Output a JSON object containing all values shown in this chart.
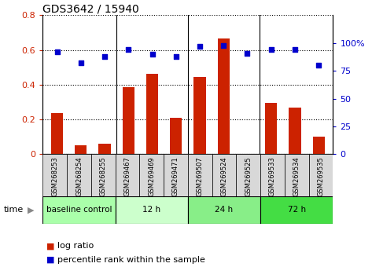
{
  "title": "GDS3642 / 15940",
  "categories": [
    "GSM268253",
    "GSM268254",
    "GSM268255",
    "GSM269467",
    "GSM269469",
    "GSM269471",
    "GSM269507",
    "GSM269524",
    "GSM269525",
    "GSM269533",
    "GSM269534",
    "GSM269535"
  ],
  "log_ratio": [
    0.235,
    0.05,
    0.06,
    0.385,
    0.465,
    0.21,
    0.445,
    0.665,
    0.0,
    0.295,
    0.27,
    0.1
  ],
  "percentile_rank": [
    92,
    82,
    88,
    94,
    90,
    88,
    97,
    98,
    91,
    94,
    94,
    80
  ],
  "bar_color": "#cc2200",
  "dot_color": "#0000cc",
  "ylim_left": [
    0,
    0.8
  ],
  "ylim_right": [
    0,
    125
  ],
  "yticks_left": [
    0,
    0.2,
    0.4,
    0.6,
    0.8
  ],
  "yticks_right": [
    0,
    25,
    50,
    75,
    100
  ],
  "ytick_labels_left": [
    "0",
    "0.2",
    "0.4",
    "0.6",
    "0.8"
  ],
  "ytick_labels_right": [
    "0",
    "25",
    "50",
    "75",
    "100%"
  ],
  "groups": [
    {
      "label": "baseline control",
      "start": 0,
      "end": 3,
      "color": "#aaffaa"
    },
    {
      "label": "12 h",
      "start": 3,
      "end": 6,
      "color": "#ccffcc"
    },
    {
      "label": "24 h",
      "start": 6,
      "end": 9,
      "color": "#88ee88"
    },
    {
      "label": "72 h",
      "start": 9,
      "end": 12,
      "color": "#44dd44"
    }
  ],
  "sample_box_color": "#d8d8d8",
  "legend_log_ratio_color": "#cc2200",
  "legend_percentile_color": "#0000cc",
  "time_label": "time",
  "tick_color_left": "#cc2200",
  "tick_color_right": "#0000cc",
  "group_dividers": [
    3,
    6,
    9
  ],
  "bar_width": 0.5
}
